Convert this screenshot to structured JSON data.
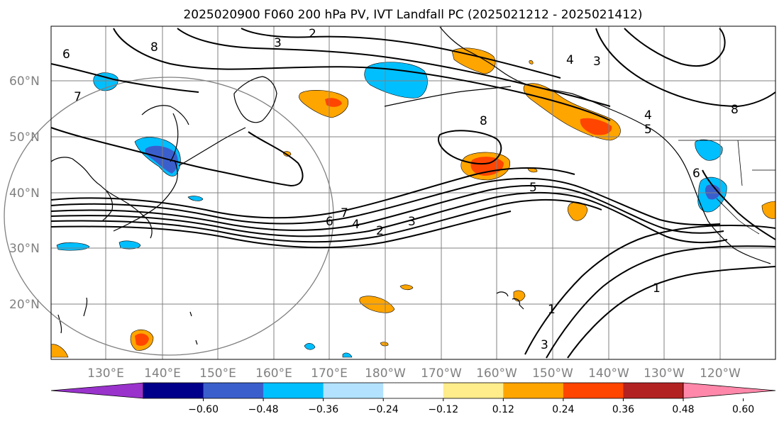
{
  "title": "2025020900 F060 200 hPa PV, IVT Landfall PC (2025021212 - 2025021412)",
  "lat_labels": [
    "60°N",
    "50°N",
    "40°N",
    "30°N",
    "20°N"
  ],
  "lon_labels": [
    "130°E",
    "140°E",
    "150°E",
    "160°E",
    "170°E",
    "180°W",
    "170°W",
    "160°W",
    "150°W",
    "140°W",
    "130°W",
    "120°W"
  ],
  "colorbar": {
    "colors": [
      "#9933cc",
      "#00008b",
      "#3a5fcd",
      "#00bfff",
      "#b2e2ff",
      "#ffffff",
      "#ffec8b",
      "#ffa500",
      "#ff4500",
      "#b22222",
      "#ff88aa"
    ],
    "tick_labels": [
      "−0.60",
      "−0.48",
      "−0.36",
      "−0.24",
      "−0.12",
      "0.12",
      "0.24",
      "0.36",
      "0.48",
      "0.60"
    ]
  },
  "contour_labels": [
    "2",
    "3",
    "8",
    "6",
    "7",
    "4",
    "3",
    "8",
    "5",
    "7",
    "6",
    "4",
    "2",
    "3",
    "5",
    "1",
    "1",
    "3",
    "8",
    "4",
    "6"
  ]
}
